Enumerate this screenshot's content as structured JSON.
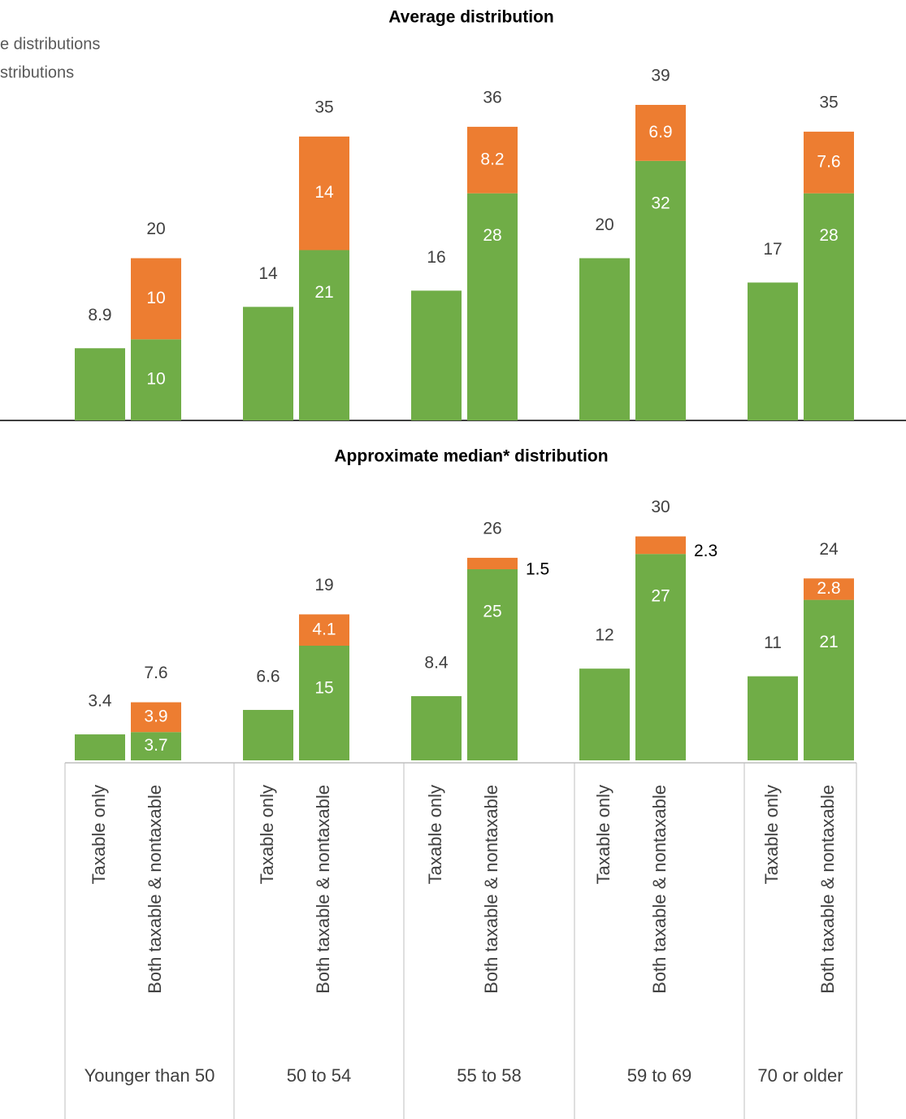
{
  "chart_data": [
    {
      "type": "bar",
      "title": "Average distribution",
      "legend": true,
      "ylim": [
        0,
        40
      ],
      "series": [
        {
          "name": "e distributions",
          "color": "#70ad47",
          "values": [
            8.9,
            10,
            14,
            21,
            16,
            28,
            20,
            32,
            17,
            28
          ]
        },
        {
          "name": "stributions",
          "color": "#ed7d31",
          "values": [
            null,
            10,
            null,
            14,
            null,
            8.2,
            null,
            6.9,
            null,
            7.6
          ]
        }
      ],
      "totals": [
        null,
        20,
        null,
        35,
        null,
        36,
        null,
        39,
        null,
        35
      ]
    },
    {
      "type": "bar",
      "title": "Approximate median* distribution",
      "ylim": [
        0,
        35
      ],
      "categories": [
        "Taxable only",
        "Both taxable & nontaxable",
        "Taxable only",
        "Both taxable & nontaxable",
        "Taxable only",
        "Both taxable & nontaxable",
        "Taxable only",
        "Both taxable & nontaxable",
        "Taxable only",
        "Both taxable & nontaxable"
      ],
      "groups": [
        "Younger than 50",
        "50 to 54",
        "55 to 58",
        "59 to 69",
        "70 or older"
      ],
      "series": [
        {
          "color": "#70ad47",
          "values": [
            3.4,
            3.7,
            6.6,
            15,
            8.4,
            25,
            12,
            27,
            11,
            21
          ]
        },
        {
          "color": "#ed7d31",
          "values": [
            null,
            3.9,
            null,
            4.1,
            null,
            1.5,
            null,
            2.3,
            null,
            2.8
          ]
        }
      ],
      "totals": [
        null,
        7.6,
        null,
        19,
        null,
        26,
        null,
        30,
        null,
        24
      ]
    }
  ]
}
